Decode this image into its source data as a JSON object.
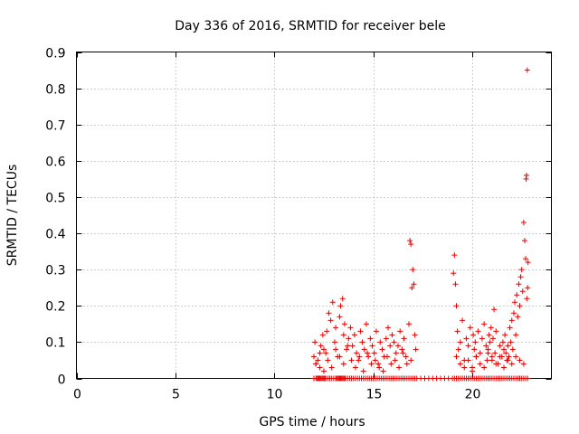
{
  "chart_data": {
    "type": "scatter",
    "title": "Day 336 of 2016, SRMTID for receiver bele",
    "xlabel": "GPS time / hours",
    "ylabel": "SRMTID / TECUs",
    "xlim": [
      0,
      24
    ],
    "ylim": [
      0,
      0.9
    ],
    "xticks": [
      0,
      5,
      10,
      15,
      20
    ],
    "xtick_labels": [
      "0",
      "5",
      "10",
      "15",
      "20"
    ],
    "yticks": [
      0,
      0.1,
      0.2,
      0.3,
      0.4,
      0.5,
      0.6,
      0.7,
      0.8,
      0.9
    ],
    "ytick_labels": [
      "0",
      "0.1",
      "0.2",
      "0.3",
      "0.4",
      "0.5",
      "0.6",
      "0.7",
      "0.8",
      "0.9"
    ],
    "grid": true,
    "marker": "+",
    "color": "#e00000",
    "series": [
      {
        "name": "SRMTID",
        "x": [
          12.0,
          12.1,
          12.15,
          12.2,
          12.25,
          12.3,
          12.35,
          12.4,
          12.45,
          12.5,
          12.55,
          12.6,
          12.7,
          12.8,
          12.9,
          13.0,
          13.1,
          13.15,
          13.2,
          13.25,
          13.3,
          13.35,
          13.4,
          13.45,
          13.5,
          13.55,
          13.6,
          13.7,
          13.8,
          13.9,
          14.0,
          14.1,
          14.2,
          14.3,
          14.4,
          14.5,
          14.6,
          14.7,
          14.8,
          14.9,
          15.0,
          15.1,
          15.2,
          15.3,
          15.4,
          15.5,
          15.6,
          15.7,
          15.8,
          15.9,
          16.0,
          16.1,
          16.2,
          16.3,
          16.4,
          16.5,
          16.6,
          16.7,
          16.8,
          16.9,
          17.0,
          17.1,
          17.2,
          17.4,
          17.6,
          17.8,
          18.0,
          18.2,
          18.4,
          18.6,
          18.8,
          19.0,
          19.1,
          19.2,
          19.3,
          19.4,
          19.5,
          19.6,
          19.7,
          19.8,
          19.9,
          20.0,
          20.1,
          20.2,
          20.3,
          20.4,
          20.5,
          20.6,
          20.7,
          20.8,
          20.9,
          21.0,
          21.1,
          21.2,
          21.3,
          21.4,
          21.5,
          21.6,
          21.7,
          21.8,
          21.9,
          22.0,
          22.1,
          22.2,
          22.3,
          22.4,
          22.5,
          22.6,
          22.7,
          22.8,
          12.0,
          12.05,
          12.1,
          12.2,
          12.3,
          12.35,
          12.45,
          12.5,
          12.6,
          12.65,
          12.75,
          12.85,
          12.95,
          13.05,
          13.1,
          13.2,
          13.3,
          13.35,
          13.45,
          13.5,
          13.55,
          13.65,
          13.75,
          13.85,
          13.95,
          14.05,
          14.15,
          14.25,
          14.35,
          14.45,
          14.55,
          14.65,
          14.75,
          14.85,
          14.95,
          15.05,
          15.15,
          15.25,
          15.35,
          15.45,
          15.55,
          15.65,
          15.75,
          15.85,
          15.95,
          16.05,
          16.15,
          16.25,
          16.35,
          16.45,
          16.55,
          16.65,
          16.8,
          16.85,
          16.9,
          16.95,
          17.0,
          17.05,
          17.1,
          17.15,
          19.05,
          19.1,
          19.15,
          19.2,
          19.25,
          19.3,
          19.4,
          19.5,
          19.6,
          19.7,
          19.8,
          19.9,
          20.0,
          20.05,
          20.1,
          20.15,
          20.2,
          20.3,
          20.4,
          20.5,
          20.6,
          20.7,
          20.75,
          20.8,
          20.85,
          20.9,
          20.95,
          21.0,
          21.05,
          21.1,
          21.15,
          21.2,
          21.3,
          21.4,
          21.5,
          21.55,
          21.6,
          21.65,
          21.7,
          21.75,
          21.8,
          21.85,
          21.9,
          21.95,
          22.0,
          22.05,
          22.1,
          22.15,
          22.2,
          22.25,
          22.3,
          22.35,
          22.4,
          22.45,
          22.5,
          22.55,
          22.6,
          22.65,
          22.7,
          22.72,
          22.74,
          22.76,
          22.78,
          22.8,
          22.82,
          12.1,
          12.3,
          12.5,
          12.7,
          12.9,
          13.1,
          13.3,
          13.5,
          13.7,
          13.9,
          14.1,
          14.3,
          14.5,
          14.7,
          14.9,
          15.1,
          15.3,
          15.5,
          15.7,
          15.9,
          16.1,
          16.3,
          16.5,
          16.7,
          16.9,
          19.2,
          19.4,
          19.6,
          19.8,
          20.0,
          20.2,
          20.4,
          20.6,
          20.8,
          21.0,
          21.2,
          21.4,
          21.6,
          21.8,
          22.0,
          22.2,
          22.4,
          22.6
        ],
        "y": [
          0.0,
          0.0,
          0.0,
          0.0,
          0.0,
          0.0,
          0.0,
          0.0,
          0.0,
          0.0,
          0.0,
          0.0,
          0.0,
          0.0,
          0.0,
          0.0,
          0.0,
          0.0,
          0.0,
          0.0,
          0.0,
          0.0,
          0.0,
          0.0,
          0.0,
          0.0,
          0.0,
          0.0,
          0.0,
          0.0,
          0.0,
          0.0,
          0.0,
          0.0,
          0.0,
          0.0,
          0.0,
          0.0,
          0.0,
          0.0,
          0.0,
          0.0,
          0.0,
          0.0,
          0.0,
          0.0,
          0.0,
          0.0,
          0.0,
          0.0,
          0.0,
          0.0,
          0.0,
          0.0,
          0.0,
          0.0,
          0.0,
          0.0,
          0.0,
          0.0,
          0.0,
          0.0,
          0.0,
          0.0,
          0.0,
          0.0,
          0.0,
          0.0,
          0.0,
          0.0,
          0.0,
          0.0,
          0.0,
          0.0,
          0.0,
          0.0,
          0.0,
          0.0,
          0.0,
          0.0,
          0.0,
          0.0,
          0.0,
          0.0,
          0.0,
          0.0,
          0.0,
          0.0,
          0.0,
          0.0,
          0.0,
          0.0,
          0.0,
          0.0,
          0.0,
          0.0,
          0.0,
          0.0,
          0.0,
          0.0,
          0.0,
          0.0,
          0.0,
          0.0,
          0.0,
          0.0,
          0.0,
          0.0,
          0.0,
          0.0,
          0.06,
          0.1,
          0.04,
          0.05,
          0.03,
          0.09,
          0.12,
          0.08,
          0.07,
          0.13,
          0.18,
          0.16,
          0.21,
          0.1,
          0.14,
          0.06,
          0.17,
          0.2,
          0.22,
          0.12,
          0.15,
          0.08,
          0.11,
          0.14,
          0.09,
          0.12,
          0.07,
          0.05,
          0.13,
          0.1,
          0.08,
          0.15,
          0.06,
          0.11,
          0.09,
          0.07,
          0.13,
          0.04,
          0.1,
          0.08,
          0.06,
          0.11,
          0.14,
          0.09,
          0.12,
          0.1,
          0.07,
          0.09,
          0.13,
          0.08,
          0.11,
          0.06,
          0.15,
          0.38,
          0.37,
          0.25,
          0.3,
          0.26,
          0.12,
          0.08,
          0.29,
          0.34,
          0.26,
          0.2,
          0.13,
          0.08,
          0.1,
          0.16,
          0.05,
          0.11,
          0.09,
          0.14,
          0.03,
          0.12,
          0.08,
          0.1,
          0.06,
          0.13,
          0.07,
          0.11,
          0.15,
          0.09,
          0.05,
          0.08,
          0.12,
          0.1,
          0.14,
          0.06,
          0.11,
          0.19,
          0.07,
          0.13,
          0.04,
          0.09,
          0.06,
          0.1,
          0.08,
          0.12,
          0.07,
          0.05,
          0.09,
          0.06,
          0.14,
          0.1,
          0.16,
          0.08,
          0.18,
          0.21,
          0.12,
          0.23,
          0.17,
          0.26,
          0.2,
          0.28,
          0.3,
          0.24,
          0.43,
          0.38,
          0.33,
          0.55,
          0.56,
          0.22,
          0.85,
          0.25,
          0.32,
          0.04,
          0.07,
          0.02,
          0.05,
          0.03,
          0.08,
          0.06,
          0.04,
          0.09,
          0.05,
          0.03,
          0.06,
          0.02,
          0.07,
          0.04,
          0.05,
          0.03,
          0.02,
          0.06,
          0.04,
          0.05,
          0.03,
          0.07,
          0.04,
          0.05,
          0.06,
          0.04,
          0.03,
          0.05,
          0.02,
          0.06,
          0.04,
          0.03,
          0.07,
          0.05,
          0.04,
          0.06,
          0.03,
          0.05,
          0.04,
          0.06,
          0.05,
          0.04
        ]
      }
    ]
  }
}
